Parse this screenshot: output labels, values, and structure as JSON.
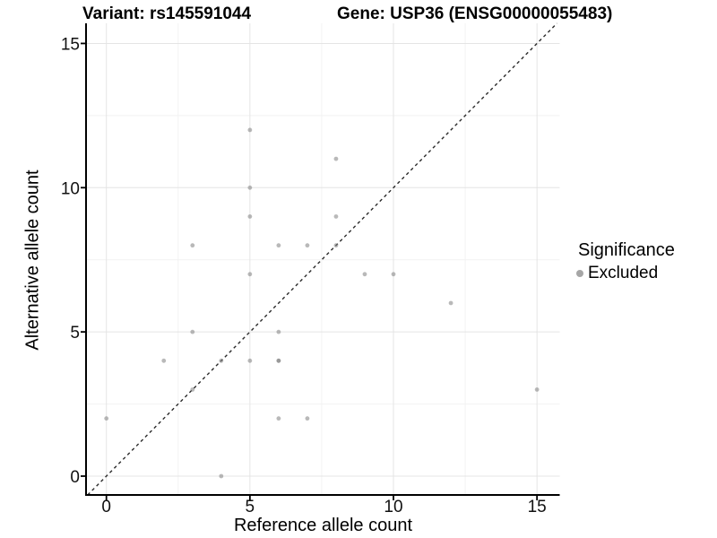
{
  "chart_data": {
    "type": "scatter",
    "title_left": "Variant: rs145591044",
    "title_right": "Gene: USP36 (ENSG00000055483)",
    "xlabel": "Reference allele count",
    "ylabel": "Alternative allele count",
    "xlim": [
      -0.75,
      15.75
    ],
    "ylim": [
      -0.75,
      15.75
    ],
    "xticks": [
      0,
      5,
      10,
      15
    ],
    "yticks": [
      0,
      5,
      10,
      15
    ],
    "xticks_minor": [
      2.5,
      7.5,
      12.5
    ],
    "yticks_minor": [
      2.5,
      7.5,
      12.5
    ],
    "grid": true,
    "identity_line": {
      "style": "dashed",
      "slope": 1,
      "intercept": 0
    },
    "legend": {
      "title": "Significance",
      "position": "right",
      "items": [
        {
          "label": "Excluded",
          "marker": "circle",
          "color": "#a6a6a6"
        }
      ]
    },
    "series": [
      {
        "name": "Excluded",
        "color": "#808080",
        "opacity": 0.55,
        "points": [
          [
            0,
            2
          ],
          [
            2,
            4
          ],
          [
            3,
            3
          ],
          [
            3,
            5
          ],
          [
            3,
            8
          ],
          [
            4,
            0
          ],
          [
            4,
            4
          ],
          [
            5,
            4
          ],
          [
            5,
            7
          ],
          [
            5,
            9
          ],
          [
            5,
            10
          ],
          [
            5,
            12
          ],
          [
            6,
            2
          ],
          [
            6,
            4
          ],
          [
            6,
            4
          ],
          [
            6,
            5
          ],
          [
            6,
            8
          ],
          [
            7,
            2
          ],
          [
            7,
            8
          ],
          [
            8,
            8
          ],
          [
            8,
            9
          ],
          [
            8,
            11
          ],
          [
            9,
            7
          ],
          [
            10,
            7
          ],
          [
            12,
            6
          ],
          [
            15,
            3
          ]
        ]
      }
    ],
    "colors": {
      "grid_major": "#e4e4e4",
      "grid_minor": "#f2f2f2",
      "axis_line": "#000000",
      "tick_label": "#111111",
      "identity_line": "#2a2a2a"
    }
  }
}
